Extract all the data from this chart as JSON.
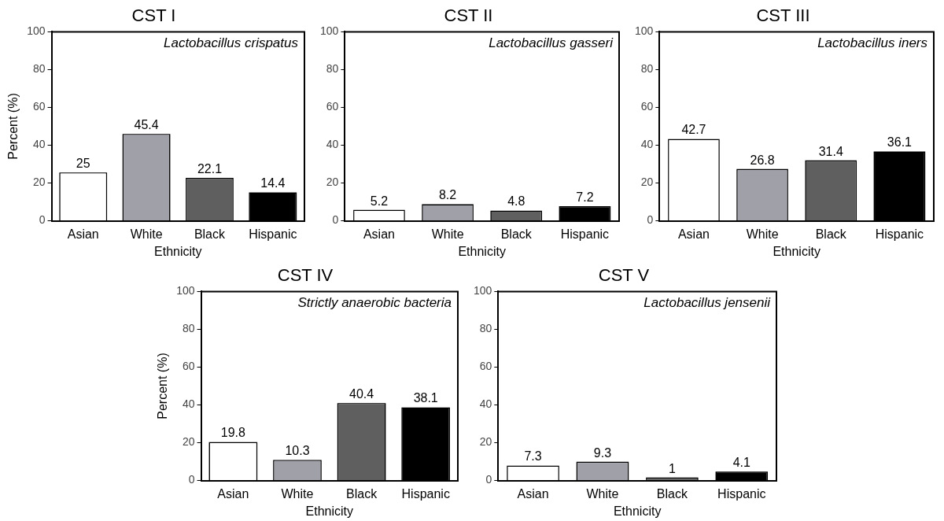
{
  "chart_data": [
    {
      "type": "bar",
      "title": "CST I",
      "xlabel": "Ethnicity",
      "ylabel": "Percent (%)",
      "annotations": [
        "Lactobacillus crispatus"
      ],
      "categories": [
        "Asian",
        "White",
        "Black",
        "Hispanic"
      ],
      "values": [
        25,
        45.4,
        22.1,
        14.4
      ],
      "colors": [
        "#ffffff",
        "#a0a0a8",
        "#5f5f5f",
        "#000000"
      ],
      "ylim": [
        0,
        100
      ],
      "yticks": [
        0,
        20,
        40,
        60,
        80,
        100
      ],
      "grid": false,
      "legend": false,
      "data_labels": true
    },
    {
      "type": "bar",
      "title": "CST II",
      "xlabel": "Ethnicity",
      "annotations": [
        "Lactobacillus gasseri"
      ],
      "categories": [
        "Asian",
        "White",
        "Black",
        "Hispanic"
      ],
      "values": [
        5.2,
        8.2,
        4.8,
        7.2
      ],
      "colors": [
        "#ffffff",
        "#a0a0a8",
        "#5f5f5f",
        "#000000"
      ],
      "ylim": [
        0,
        100
      ],
      "yticks": [
        0,
        20,
        40,
        60,
        80,
        100
      ],
      "grid": false,
      "legend": false,
      "data_labels": true
    },
    {
      "type": "bar",
      "title": "CST III",
      "xlabel": "Ethnicity",
      "annotations": [
        "Lactobacillus iners"
      ],
      "categories": [
        "Asian",
        "White",
        "Black",
        "Hispanic"
      ],
      "values": [
        42.7,
        26.8,
        31.4,
        36.1
      ],
      "colors": [
        "#ffffff",
        "#a0a0a8",
        "#5f5f5f",
        "#000000"
      ],
      "ylim": [
        0,
        100
      ],
      "yticks": [
        0,
        20,
        40,
        60,
        80,
        100
      ],
      "grid": false,
      "legend": false,
      "data_labels": true
    },
    {
      "type": "bar",
      "title": "CST IV",
      "xlabel": "Ethnicity",
      "ylabel": "Percent (%)",
      "annotations": [
        "Strictly anaerobic bacteria"
      ],
      "categories": [
        "Asian",
        "White",
        "Black",
        "Hispanic"
      ],
      "values": [
        19.8,
        10.3,
        40.4,
        38.1
      ],
      "colors": [
        "#ffffff",
        "#a0a0a8",
        "#5f5f5f",
        "#000000"
      ],
      "ylim": [
        0,
        100
      ],
      "yticks": [
        0,
        20,
        40,
        60,
        80,
        100
      ],
      "grid": false,
      "legend": false,
      "data_labels": true
    },
    {
      "type": "bar",
      "title": "CST V",
      "xlabel": "Ethnicity",
      "annotations": [
        "Lactobacillus jensenii"
      ],
      "categories": [
        "Asian",
        "White",
        "Black",
        "Hispanic"
      ],
      "values": [
        7.3,
        9.3,
        1,
        4.1
      ],
      "colors": [
        "#ffffff",
        "#a0a0a8",
        "#5f5f5f",
        "#000000"
      ],
      "ylim": [
        0,
        100
      ],
      "yticks": [
        0,
        20,
        40,
        60,
        80,
        100
      ],
      "grid": false,
      "legend": false,
      "data_labels": true
    }
  ]
}
